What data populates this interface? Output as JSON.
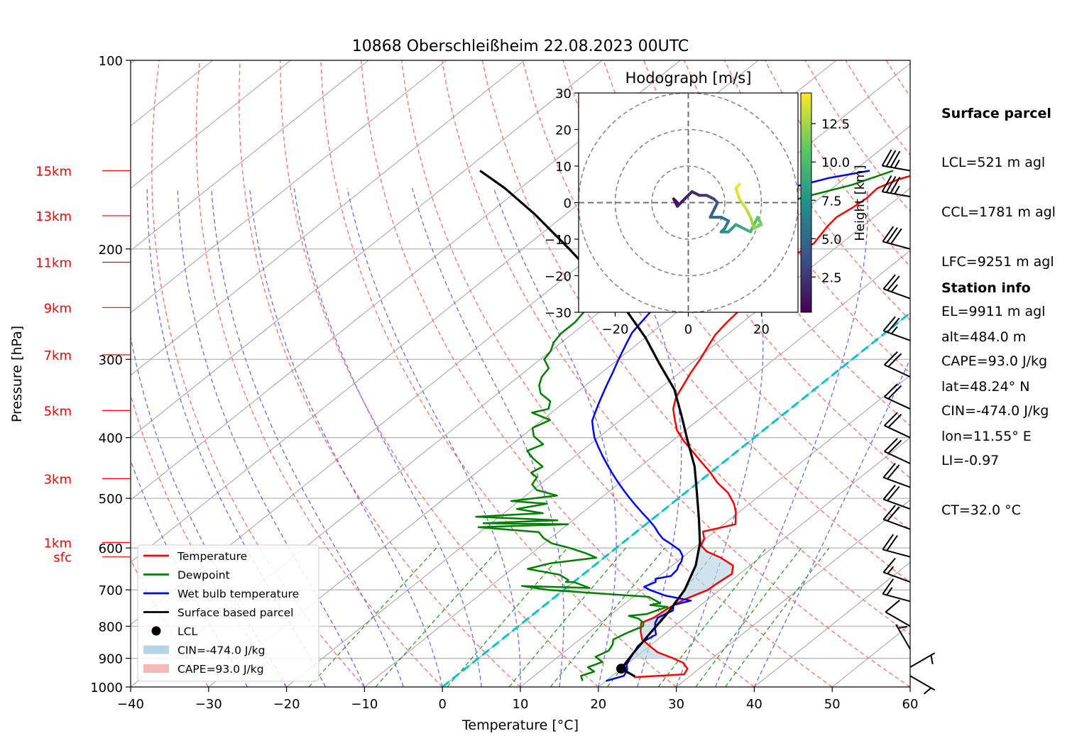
{
  "chart_data": {
    "type": "skew-t log-p",
    "title": "10868 Oberschleißheim 22.08.2023 00UTC",
    "xlabel": "Temperature [°C]",
    "ylabel": "Pressure [hPa]",
    "xlim": [
      -40,
      60
    ],
    "ylim": [
      1000,
      100
    ],
    "x_ticks": [
      -40,
      -30,
      -20,
      -10,
      0,
      10,
      20,
      30,
      40,
      50,
      60
    ],
    "y_ticks": [
      100,
      200,
      300,
      400,
      500,
      600,
      700,
      800,
      900,
      1000
    ],
    "grid": true,
    "height_ticks": [
      {
        "label": "15km",
        "p": 150
      },
      {
        "label": "13km",
        "p": 177
      },
      {
        "label": "11km",
        "p": 210
      },
      {
        "label": "9km",
        "p": 248
      },
      {
        "label": "7km",
        "p": 295
      },
      {
        "label": "5km",
        "p": 362
      },
      {
        "label": "3km",
        "p": 465
      },
      {
        "label": "1km",
        "p": 588
      },
      {
        "label": "sfc",
        "p": 620
      }
    ],
    "series": [
      {
        "name": "Temperature",
        "color": "#ff0000",
        "points": [
          [
            23,
            965
          ],
          [
            29,
            955
          ],
          [
            28.5,
            935
          ],
          [
            27,
            915
          ],
          [
            25,
            900
          ],
          [
            22,
            880
          ],
          [
            20,
            860
          ],
          [
            18,
            840
          ],
          [
            16.5,
            815
          ],
          [
            15.2,
            790
          ],
          [
            16,
            775
          ],
          [
            16.3,
            750
          ],
          [
            17,
            725
          ],
          [
            18.5,
            700
          ],
          [
            18.6,
            685
          ],
          [
            19,
            660
          ],
          [
            17.8,
            640
          ],
          [
            15,
            622
          ],
          [
            12.2,
            608
          ],
          [
            10.5,
            595
          ],
          [
            9.8,
            580
          ],
          [
            8.5,
            565
          ],
          [
            11.5,
            550
          ],
          [
            9.5,
            525
          ],
          [
            8,
            510
          ],
          [
            5.5,
            490
          ],
          [
            2.5,
            472
          ],
          [
            0,
            455
          ],
          [
            -2.8,
            438
          ],
          [
            -5.5,
            422
          ],
          [
            -8.5,
            405
          ],
          [
            -11,
            390
          ],
          [
            -13,
            375
          ],
          [
            -15,
            360
          ],
          [
            -16.5,
            345
          ],
          [
            -17.5,
            330
          ],
          [
            -18.5,
            316
          ],
          [
            -19.5,
            300
          ],
          [
            -20.5,
            287
          ],
          [
            -21.5,
            274
          ],
          [
            -22,
            262
          ],
          [
            -22.3,
            251
          ],
          [
            -22.5,
            240
          ],
          [
            -22.5,
            230
          ],
          [
            -22.7,
            220
          ],
          [
            -23.2,
            211
          ],
          [
            -24,
            203
          ],
          [
            -23.5,
            196
          ],
          [
            -24,
            190
          ],
          [
            -24.5,
            184
          ],
          [
            -24.8,
            178
          ],
          [
            -24.3,
            172
          ],
          [
            -24,
            166
          ],
          [
            -24.2,
            160
          ],
          [
            -23,
            155
          ],
          [
            -20.5,
            150
          ]
        ]
      },
      {
        "name": "Dewpoint",
        "color": "#008000",
        "points": [
          [
            17,
            978
          ],
          [
            16,
            960
          ],
          [
            17,
            945
          ],
          [
            15.5,
            930
          ],
          [
            16.5,
            912
          ],
          [
            14.8,
            895
          ],
          [
            15.5,
            875
          ],
          [
            15,
            855
          ],
          [
            14.3,
            840
          ],
          [
            15,
            820
          ],
          [
            16,
            800
          ],
          [
            15.5,
            790
          ],
          [
            14.2,
            778
          ],
          [
            12.5,
            770
          ],
          [
            14.5,
            765
          ],
          [
            15.2,
            755
          ],
          [
            16,
            745
          ],
          [
            13.5,
            740
          ],
          [
            14.5,
            735
          ],
          [
            12,
            718
          ],
          [
            -2,
            700
          ],
          [
            -6,
            690
          ],
          [
            3,
            695
          ],
          [
            0,
            680
          ],
          [
            -1,
            680
          ],
          [
            -1,
            675
          ],
          [
            -3,
            662
          ],
          [
            -8,
            648
          ],
          [
            -6,
            635
          ],
          [
            -1,
            622
          ],
          [
            -3,
            612
          ],
          [
            -6,
            600
          ],
          [
            -9,
            590
          ],
          [
            -11,
            578
          ],
          [
            -12.5,
            566
          ],
          [
            -21,
            556
          ],
          [
            -10,
            550
          ],
          [
            -21,
            548
          ],
          [
            -12,
            542
          ],
          [
            -23,
            535
          ],
          [
            -15,
            528
          ],
          [
            -19,
            520
          ],
          [
            -16,
            510
          ],
          [
            -21,
            505
          ],
          [
            -16,
            495
          ],
          [
            -19.5,
            485
          ],
          [
            -21,
            475
          ],
          [
            -21.5,
            463
          ],
          [
            -23,
            455
          ],
          [
            -22.5,
            445
          ],
          [
            -25,
            432
          ],
          [
            -27,
            420
          ],
          [
            -26,
            410
          ],
          [
            -28.5,
            398
          ],
          [
            -30,
            386
          ],
          [
            -29,
            375
          ],
          [
            -32.5,
            365
          ],
          [
            -31,
            360
          ],
          [
            -32,
            350
          ],
          [
            -34.5,
            340
          ],
          [
            -36,
            330
          ],
          [
            -37,
            320
          ],
          [
            -37.5,
            310
          ],
          [
            -39.5,
            300
          ],
          [
            -40,
            291
          ],
          [
            -41,
            282
          ],
          [
            -41.5,
            273
          ],
          [
            -41.5,
            262
          ],
          [
            -42,
            252
          ],
          [
            -42.5,
            243
          ],
          [
            -42,
            234
          ],
          [
            -43,
            225
          ],
          [
            -42.5,
            216
          ],
          [
            -43.5,
            208
          ],
          [
            -42.5,
            200
          ],
          [
            -41,
            193
          ],
          [
            -40,
            186
          ],
          [
            -38,
            179
          ],
          [
            -35,
            172
          ],
          [
            -32,
            165
          ],
          [
            -28,
            158
          ],
          [
            -25,
            150
          ]
        ]
      },
      {
        "name": "Wet bulb temperature",
        "color": "#0000ff",
        "points": [
          [
            20,
            978
          ],
          [
            21.5,
            960
          ],
          [
            21,
            940
          ],
          [
            20,
            920
          ],
          [
            19.5,
            900
          ],
          [
            19,
            880
          ],
          [
            18.5,
            860
          ],
          [
            18.5,
            845
          ],
          [
            19,
            825
          ],
          [
            17.8,
            805
          ],
          [
            17,
            790
          ],
          [
            16.5,
            775
          ],
          [
            17.3,
            755
          ],
          [
            16.5,
            740
          ],
          [
            18,
            728
          ],
          [
            14,
            715
          ],
          [
            11,
            700
          ],
          [
            9.8,
            692
          ],
          [
            10.5,
            680
          ],
          [
            10,
            672
          ],
          [
            11.5,
            665
          ],
          [
            11.3,
            650
          ],
          [
            10.8,
            640
          ],
          [
            10.5,
            630
          ],
          [
            9.8,
            618
          ],
          [
            8.5,
            605
          ],
          [
            6.5,
            592
          ],
          [
            4.5,
            580
          ],
          [
            3,
            568
          ],
          [
            1.5,
            555
          ],
          [
            -0.5,
            540
          ],
          [
            -2.5,
            526
          ],
          [
            -4.5,
            512
          ],
          [
            -6.5,
            498
          ],
          [
            -8.5,
            484
          ],
          [
            -10.5,
            470
          ],
          [
            -12.5,
            456
          ],
          [
            -14.5,
            442
          ],
          [
            -16.5,
            428
          ],
          [
            -18.5,
            414
          ],
          [
            -20.5,
            400
          ],
          [
            -22,
            388
          ],
          [
            -23.5,
            376
          ],
          [
            -24.5,
            364
          ],
          [
            -25.5,
            352
          ],
          [
            -26.5,
            340
          ],
          [
            -27.5,
            328
          ],
          [
            -28.5,
            316
          ],
          [
            -29.5,
            305
          ],
          [
            -30.5,
            294
          ],
          [
            -31.5,
            283
          ],
          [
            -32.5,
            272
          ],
          [
            -33,
            262
          ],
          [
            -33.5,
            252
          ],
          [
            -34,
            242
          ],
          [
            -34,
            232
          ],
          [
            -34.5,
            222
          ],
          [
            -35,
            212
          ],
          [
            -35.5,
            203
          ],
          [
            -36,
            194
          ],
          [
            -36.5,
            186
          ],
          [
            -36.8,
            178
          ],
          [
            -36.2,
            171
          ],
          [
            -35.5,
            165
          ],
          [
            -35,
            159
          ],
          [
            -32,
            154
          ],
          [
            -28,
            150
          ]
        ]
      },
      {
        "name": "Surface based parcel",
        "color": "#000000",
        "points": [
          [
            23,
            962
          ],
          [
            20,
            935
          ],
          [
            19,
            880
          ],
          [
            18,
            820
          ],
          [
            17,
            760
          ],
          [
            15.5,
            700
          ],
          [
            13,
            640
          ],
          [
            10,
            590
          ],
          [
            6,
            540
          ],
          [
            1.5,
            490
          ],
          [
            -3,
            445
          ],
          [
            -8,
            405
          ],
          [
            -13,
            368
          ],
          [
            -18,
            335
          ],
          [
            -24,
            305
          ],
          [
            -30,
            277
          ],
          [
            -37,
            250
          ],
          [
            -45,
            225
          ],
          [
            -54,
            200
          ],
          [
            -64,
            176
          ],
          [
            -72,
            160
          ],
          [
            -78,
            150
          ]
        ]
      }
    ],
    "lcl": {
      "name": "LCL",
      "t": 20,
      "p": 935
    },
    "cin_label": "CIN=-474.0 J/kg",
    "cape_label": "CAPE=93.0 J/kg",
    "legend_position": "lower-left",
    "legend": [
      "Temperature",
      "Dewpoint",
      "Wet bulb temperature",
      "Surface based parcel",
      "LCL",
      "CIN=-474.0 J/kg",
      "CAPE=93.0 J/kg"
    ],
    "hodograph": {
      "title": "Hodograph [m/s]",
      "xlim": [
        -30,
        30
      ],
      "ylim": [
        -30,
        30
      ],
      "ticks": [
        -30,
        -20,
        -10,
        0,
        10,
        20,
        30
      ],
      "x_tick_labels": [
        -20,
        0,
        20
      ],
      "colorbar_label": "Height [km]",
      "colorbar_ticks": [
        2.5,
        5.0,
        7.5,
        10.0,
        12.5
      ],
      "colorbar_range": [
        0.2,
        14.5
      ],
      "points": [
        [
          -3,
          0,
          0.5
        ],
        [
          -4,
          1,
          0.8
        ],
        [
          -3,
          -1,
          1.1
        ],
        [
          -1,
          1,
          1.4
        ],
        [
          1,
          3,
          1.8
        ],
        [
          3,
          2,
          2.2
        ],
        [
          5,
          2,
          2.7
        ],
        [
          7,
          1,
          3.2
        ],
        [
          8,
          0,
          3.7
        ],
        [
          7,
          -2,
          4.2
        ],
        [
          6,
          -4,
          4.8
        ],
        [
          9,
          -4,
          5.4
        ],
        [
          11,
          -5,
          6.0
        ],
        [
          10,
          -7,
          6.6
        ],
        [
          9,
          -8,
          7.2
        ],
        [
          11,
          -8,
          7.8
        ],
        [
          13,
          -6,
          8.4
        ],
        [
          15,
          -7,
          9.0
        ],
        [
          17,
          -8,
          9.6
        ],
        [
          18,
          -6,
          10.2
        ],
        [
          19,
          -4,
          10.8
        ],
        [
          20,
          -6,
          11.4
        ],
        [
          18,
          -7,
          12.0
        ],
        [
          17,
          -4,
          12.6
        ],
        [
          16,
          -2,
          13.2
        ],
        [
          14,
          1,
          13.6
        ],
        [
          13,
          4,
          14.0
        ],
        [
          14,
          5,
          14.3
        ]
      ]
    },
    "wind_barbs": [
      {
        "p": 150,
        "speed": 35,
        "dir": 280
      },
      {
        "p": 165,
        "speed": 35,
        "dir": 280
      },
      {
        "p": 200,
        "speed": 30,
        "dir": 285
      },
      {
        "p": 240,
        "speed": 25,
        "dir": 290
      },
      {
        "p": 280,
        "speed": 25,
        "dir": 290
      },
      {
        "p": 320,
        "speed": 20,
        "dir": 295
      },
      {
        "p": 360,
        "speed": 20,
        "dir": 295
      },
      {
        "p": 400,
        "speed": 20,
        "dir": 295
      },
      {
        "p": 440,
        "speed": 20,
        "dir": 295
      },
      {
        "p": 480,
        "speed": 20,
        "dir": 290
      },
      {
        "p": 520,
        "speed": 20,
        "dir": 290
      },
      {
        "p": 560,
        "speed": 20,
        "dir": 290
      },
      {
        "p": 620,
        "speed": 20,
        "dir": 285
      },
      {
        "p": 680,
        "speed": 15,
        "dir": 290
      },
      {
        "p": 730,
        "speed": 15,
        "dir": 285
      },
      {
        "p": 800,
        "speed": 10,
        "dir": 300
      },
      {
        "p": 870,
        "speed": 5,
        "dir": 330
      },
      {
        "p": 930,
        "speed": 5,
        "dir": 60
      },
      {
        "p": 960,
        "speed": 5,
        "dir": 120
      }
    ]
  },
  "surface_parcel": {
    "heading": "Surface parcel",
    "lines": [
      "LCL=521 m agl",
      "CCL=1781 m agl",
      "LFC=9251 m agl",
      "EL=9911 m agl",
      "CAPE=93.0 J/kg",
      "CIN=-474.0 J/kg",
      "LI=-0.97",
      "CT=32.0 °C"
    ]
  },
  "station_info": {
    "heading": "Station info",
    "lines": [
      "alt=484.0 m",
      "lat=48.24° N",
      "lon=11.55° E"
    ]
  },
  "colors": {
    "temperature": "#ff0000",
    "dewpoint": "#008000",
    "wetbulb": "#0000ff",
    "parcel": "#000000",
    "dry_adiabat": "#ff6b6b",
    "moist_adiabat": "#6b6bee",
    "mixing_ratio": "#2e9b2e",
    "freezing": "#00c8c8",
    "height_label": "#ff0000",
    "cin_fill": "#b7d4e6",
    "cape_fill": "#f4b8b8"
  }
}
